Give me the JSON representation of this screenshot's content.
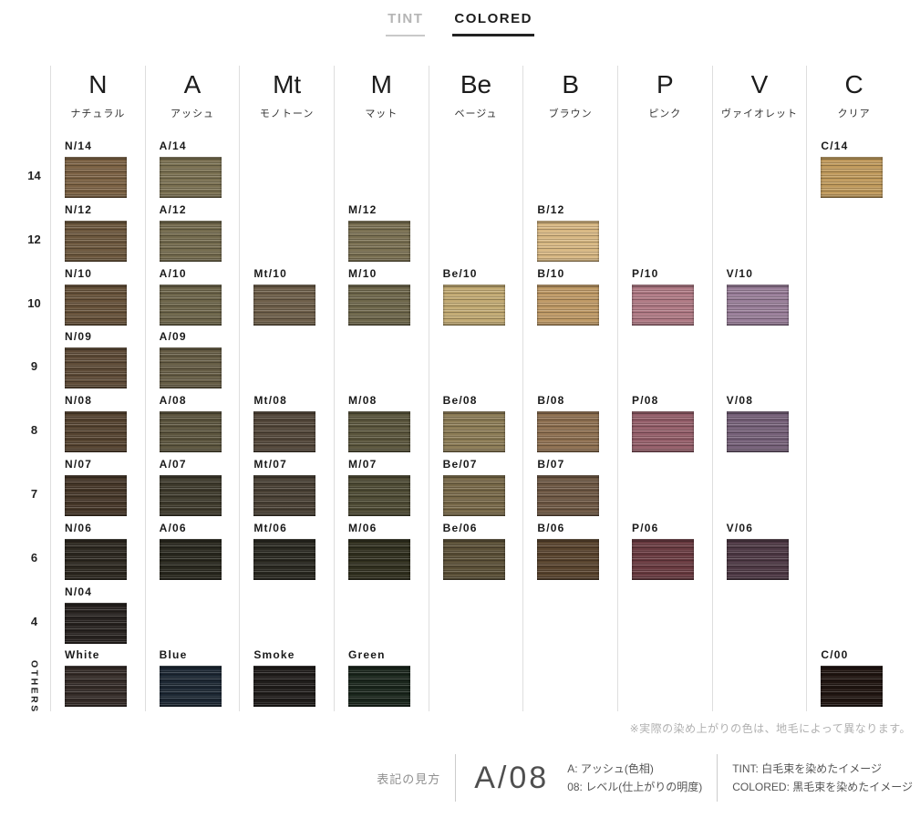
{
  "tabs": {
    "tint": "TINT",
    "colored": "COLORED"
  },
  "chart": {
    "row_labels": [
      "14",
      "12",
      "10",
      "9",
      "8",
      "7",
      "6",
      "4",
      "OTHERS"
    ],
    "columns": [
      {
        "letter": "N",
        "name": "ナチュラル",
        "cells": {
          "14": {
            "label": "N/14",
            "color": "#7c6244"
          },
          "12": {
            "label": "N/12",
            "color": "#6d583e"
          },
          "10": {
            "label": "N/10",
            "color": "#67523a"
          },
          "9": {
            "label": "N/09",
            "color": "#5e4b37"
          },
          "8": {
            "label": "N/08",
            "color": "#564431"
          },
          "7": {
            "label": "N/07",
            "color": "#463729"
          },
          "6": {
            "label": "N/06",
            "color": "#2d2820"
          },
          "4": {
            "label": "N/04",
            "color": "#282320"
          },
          "OTHERS": {
            "label": "White",
            "color": "#352c28"
          }
        }
      },
      {
        "letter": "A",
        "name": "アッシュ",
        "cells": {
          "14": {
            "label": "A/14",
            "color": "#7b7152"
          },
          "12": {
            "label": "A/12",
            "color": "#746b4e"
          },
          "10": {
            "label": "A/10",
            "color": "#6d654a"
          },
          "9": {
            "label": "A/09",
            "color": "#665d45"
          },
          "8": {
            "label": "A/08",
            "color": "#5c553e"
          },
          "7": {
            "label": "A/07",
            "color": "#3f3b2d"
          },
          "6": {
            "label": "A/06",
            "color": "#2a291f"
          },
          "OTHERS": {
            "label": "Blue",
            "color": "#1d2834"
          }
        }
      },
      {
        "letter": "Mt",
        "name": "モノトーン",
        "cells": {
          "10": {
            "label": "Mt/10",
            "color": "#6e5f4a"
          },
          "8": {
            "label": "Mt/08",
            "color": "#53473a"
          },
          "7": {
            "label": "Mt/07",
            "color": "#494034"
          },
          "6": {
            "label": "Mt/06",
            "color": "#2a2921"
          },
          "OTHERS": {
            "label": "Smoke",
            "color": "#201d1b"
          }
        }
      },
      {
        "letter": "M",
        "name": "マット",
        "cells": {
          "12": {
            "label": "M/12",
            "color": "#7a7052"
          },
          "10": {
            "label": "M/10",
            "color": "#6e674b"
          },
          "8": {
            "label": "M/08",
            "color": "#5b563d"
          },
          "7": {
            "label": "M/07",
            "color": "#4e4b34"
          },
          "6": {
            "label": "M/06",
            "color": "#31301f"
          },
          "OTHERS": {
            "label": "Green",
            "color": "#1a261c"
          }
        }
      },
      {
        "letter": "Be",
        "name": "ベージュ",
        "cells": {
          "10": {
            "label": "Be/10",
            "color": "#c2aa73"
          },
          "8": {
            "label": "Be/08",
            "color": "#8c7c56"
          },
          "7": {
            "label": "Be/07",
            "color": "#786949"
          },
          "6": {
            "label": "Be/06",
            "color": "#5b5037"
          }
        }
      },
      {
        "letter": "B",
        "name": "ブラウン",
        "cells": {
          "12": {
            "label": "B/12",
            "color": "#d8b883"
          },
          "10": {
            "label": "B/10",
            "color": "#bf9a66"
          },
          "8": {
            "label": "B/08",
            "color": "#8e7051"
          },
          "7": {
            "label": "B/07",
            "color": "#6e5844"
          },
          "6": {
            "label": "B/06",
            "color": "#59442e"
          }
        }
      },
      {
        "letter": "P",
        "name": "ピンク",
        "cells": {
          "10": {
            "label": "P/10",
            "color": "#b07a85"
          },
          "8": {
            "label": "P/08",
            "color": "#955f6a"
          },
          "6": {
            "label": "P/06",
            "color": "#6a3b41"
          }
        }
      },
      {
        "letter": "V",
        "name": "ヴァイオレット",
        "cells": {
          "10": {
            "label": "V/10",
            "color": "#997e99"
          },
          "8": {
            "label": "V/08",
            "color": "#766179"
          },
          "6": {
            "label": "V/06",
            "color": "#4e3945"
          }
        }
      },
      {
        "letter": "C",
        "name": "クリア",
        "cells": {
          "14": {
            "label": "C/14",
            "color": "#c19b5d"
          },
          "OTHERS": {
            "label": "C/00",
            "color": "#201511"
          }
        }
      }
    ]
  },
  "footer": {
    "note": "※実際の染め上がりの色は、地毛によって異なります。",
    "legend_title": "表記の見方",
    "legend_example": "A/08",
    "legend_hue": "A: アッシュ(色相)",
    "legend_level": "08: レベル(仕上がりの明度)",
    "legend_tint": "TINT: 白毛束を染めたイメージ",
    "legend_colored": "COLORED: 黒毛束を染めたイメージ"
  }
}
